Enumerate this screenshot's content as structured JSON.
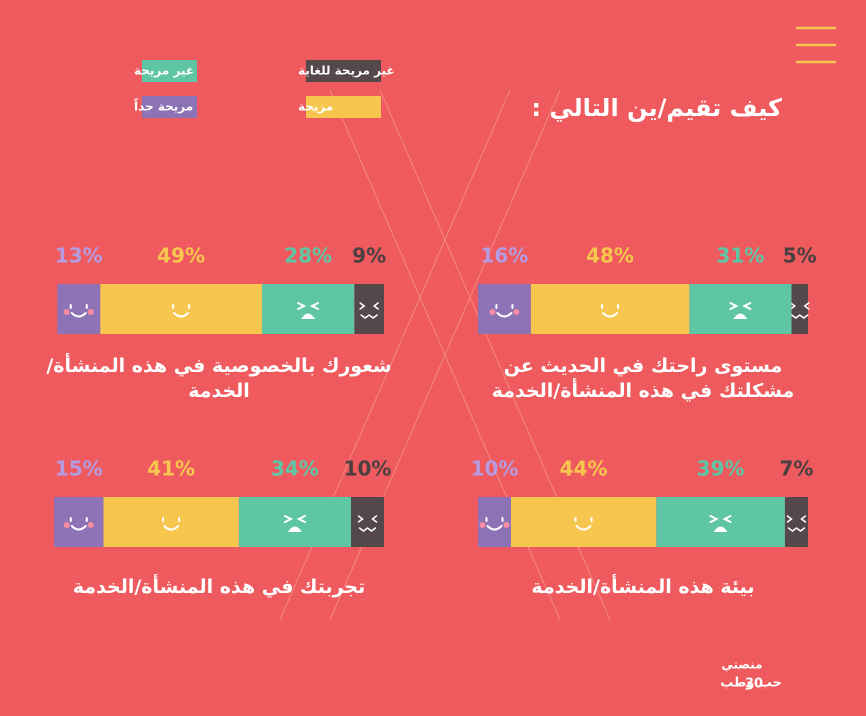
{
  "title": "كيف تقيم/ين التالي :",
  "logo": {
    "name": "منصتي",
    "number": "30",
    "partner": "حب وطب"
  },
  "chart_data": {
    "type": "bar",
    "orientation": "horizontal",
    "stacked": true,
    "direction": "rtl",
    "categories": [
      "مستوى راحتك في الحديث عن مشكلتك في هذه المنشأة/الخدمة",
      "شعورك بالخصوصية في هذه المنشأة/الخدمة",
      "بيئة هذه المنشأة/الخدمة",
      "تجربتك في هذه المنشأة/الخدمة"
    ],
    "xlim": [
      0,
      100
    ],
    "series": [
      {
        "name": "غير مريحة للغاية",
        "color": "#54484a",
        "label_color": "#4a3f41",
        "values": [
          5,
          9,
          7,
          10
        ],
        "value_labels": [
          "5%",
          "9%",
          "7%",
          "10%"
        ]
      },
      {
        "name": "غير مريحة",
        "color": "#5ec6a5",
        "label_color": "#5ec6a5",
        "values": [
          31,
          28,
          39,
          34
        ],
        "value_labels": [
          "31%",
          "28%",
          "39%",
          "34%"
        ]
      },
      {
        "name": "مريحة",
        "color": "#f7c64e",
        "label_color": "#f7c64e",
        "values": [
          48,
          49,
          44,
          41
        ],
        "value_labels": [
          "48%",
          "49%",
          "44%",
          "41%"
        ]
      },
      {
        "name": "مريحة جداً",
        "color": "#8d72b5",
        "label_color": "#b59be0",
        "values": [
          16,
          13,
          10,
          15
        ],
        "value_labels": [
          "16%",
          "13%",
          "10%",
          "15%"
        ]
      }
    ]
  }
}
